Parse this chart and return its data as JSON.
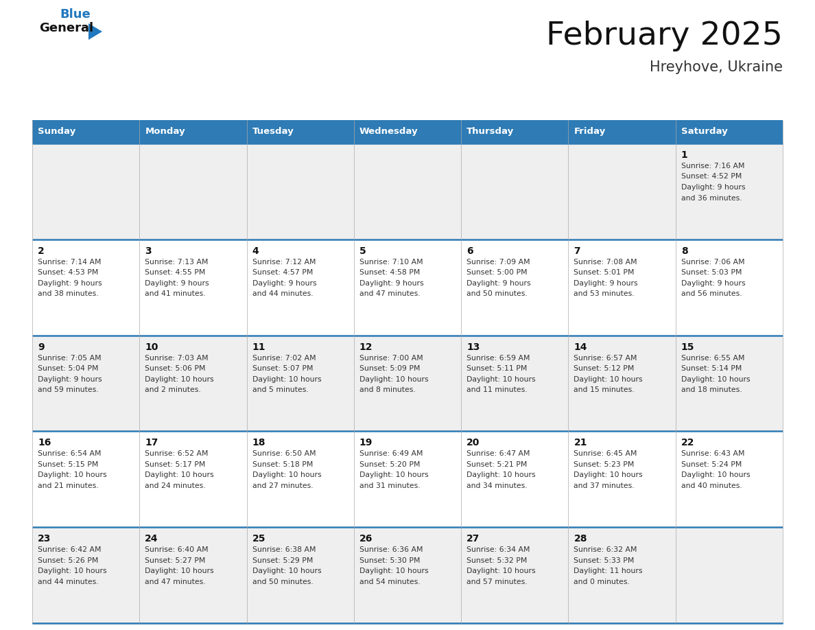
{
  "title": "February 2025",
  "subtitle": "Hreyhove, Ukraine",
  "header_color": "#2E7BB5",
  "header_text_color": "#FFFFFF",
  "row_colors": [
    "#EFEFEF",
    "#FFFFFF",
    "#EFEFEF",
    "#FFFFFF",
    "#EFEFEF"
  ],
  "line_color": "#2E7BB5",
  "text_color": "#333333",
  "day_num_color": "#111111",
  "days_of_week": [
    "Sunday",
    "Monday",
    "Tuesday",
    "Wednesday",
    "Thursday",
    "Friday",
    "Saturday"
  ],
  "calendar_data": [
    [
      null,
      null,
      null,
      null,
      null,
      null,
      {
        "day": "1",
        "sunrise": "7:16 AM",
        "sunset": "4:52 PM",
        "daylight": "9 hours\nand 36 minutes."
      }
    ],
    [
      {
        "day": "2",
        "sunrise": "7:14 AM",
        "sunset": "4:53 PM",
        "daylight": "9 hours\nand 38 minutes."
      },
      {
        "day": "3",
        "sunrise": "7:13 AM",
        "sunset": "4:55 PM",
        "daylight": "9 hours\nand 41 minutes."
      },
      {
        "day": "4",
        "sunrise": "7:12 AM",
        "sunset": "4:57 PM",
        "daylight": "9 hours\nand 44 minutes."
      },
      {
        "day": "5",
        "sunrise": "7:10 AM",
        "sunset": "4:58 PM",
        "daylight": "9 hours\nand 47 minutes."
      },
      {
        "day": "6",
        "sunrise": "7:09 AM",
        "sunset": "5:00 PM",
        "daylight": "9 hours\nand 50 minutes."
      },
      {
        "day": "7",
        "sunrise": "7:08 AM",
        "sunset": "5:01 PM",
        "daylight": "9 hours\nand 53 minutes."
      },
      {
        "day": "8",
        "sunrise": "7:06 AM",
        "sunset": "5:03 PM",
        "daylight": "9 hours\nand 56 minutes."
      }
    ],
    [
      {
        "day": "9",
        "sunrise": "7:05 AM",
        "sunset": "5:04 PM",
        "daylight": "9 hours\nand 59 minutes."
      },
      {
        "day": "10",
        "sunrise": "7:03 AM",
        "sunset": "5:06 PM",
        "daylight": "10 hours\nand 2 minutes."
      },
      {
        "day": "11",
        "sunrise": "7:02 AM",
        "sunset": "5:07 PM",
        "daylight": "10 hours\nand 5 minutes."
      },
      {
        "day": "12",
        "sunrise": "7:00 AM",
        "sunset": "5:09 PM",
        "daylight": "10 hours\nand 8 minutes."
      },
      {
        "day": "13",
        "sunrise": "6:59 AM",
        "sunset": "5:11 PM",
        "daylight": "10 hours\nand 11 minutes."
      },
      {
        "day": "14",
        "sunrise": "6:57 AM",
        "sunset": "5:12 PM",
        "daylight": "10 hours\nand 15 minutes."
      },
      {
        "day": "15",
        "sunrise": "6:55 AM",
        "sunset": "5:14 PM",
        "daylight": "10 hours\nand 18 minutes."
      }
    ],
    [
      {
        "day": "16",
        "sunrise": "6:54 AM",
        "sunset": "5:15 PM",
        "daylight": "10 hours\nand 21 minutes."
      },
      {
        "day": "17",
        "sunrise": "6:52 AM",
        "sunset": "5:17 PM",
        "daylight": "10 hours\nand 24 minutes."
      },
      {
        "day": "18",
        "sunrise": "6:50 AM",
        "sunset": "5:18 PM",
        "daylight": "10 hours\nand 27 minutes."
      },
      {
        "day": "19",
        "sunrise": "6:49 AM",
        "sunset": "5:20 PM",
        "daylight": "10 hours\nand 31 minutes."
      },
      {
        "day": "20",
        "sunrise": "6:47 AM",
        "sunset": "5:21 PM",
        "daylight": "10 hours\nand 34 minutes."
      },
      {
        "day": "21",
        "sunrise": "6:45 AM",
        "sunset": "5:23 PM",
        "daylight": "10 hours\nand 37 minutes."
      },
      {
        "day": "22",
        "sunrise": "6:43 AM",
        "sunset": "5:24 PM",
        "daylight": "10 hours\nand 40 minutes."
      }
    ],
    [
      {
        "day": "23",
        "sunrise": "6:42 AM",
        "sunset": "5:26 PM",
        "daylight": "10 hours\nand 44 minutes."
      },
      {
        "day": "24",
        "sunrise": "6:40 AM",
        "sunset": "5:27 PM",
        "daylight": "10 hours\nand 47 minutes."
      },
      {
        "day": "25",
        "sunrise": "6:38 AM",
        "sunset": "5:29 PM",
        "daylight": "10 hours\nand 50 minutes."
      },
      {
        "day": "26",
        "sunrise": "6:36 AM",
        "sunset": "5:30 PM",
        "daylight": "10 hours\nand 54 minutes."
      },
      {
        "day": "27",
        "sunrise": "6:34 AM",
        "sunset": "5:32 PM",
        "daylight": "10 hours\nand 57 minutes."
      },
      {
        "day": "28",
        "sunrise": "6:32 AM",
        "sunset": "5:33 PM",
        "daylight": "11 hours\nand 0 minutes."
      },
      null
    ]
  ],
  "logo_blue_color": "#2278BE",
  "logo_triangle_color": "#2278BE",
  "fig_width": 11.88,
  "fig_height": 9.18,
  "dpi": 100
}
